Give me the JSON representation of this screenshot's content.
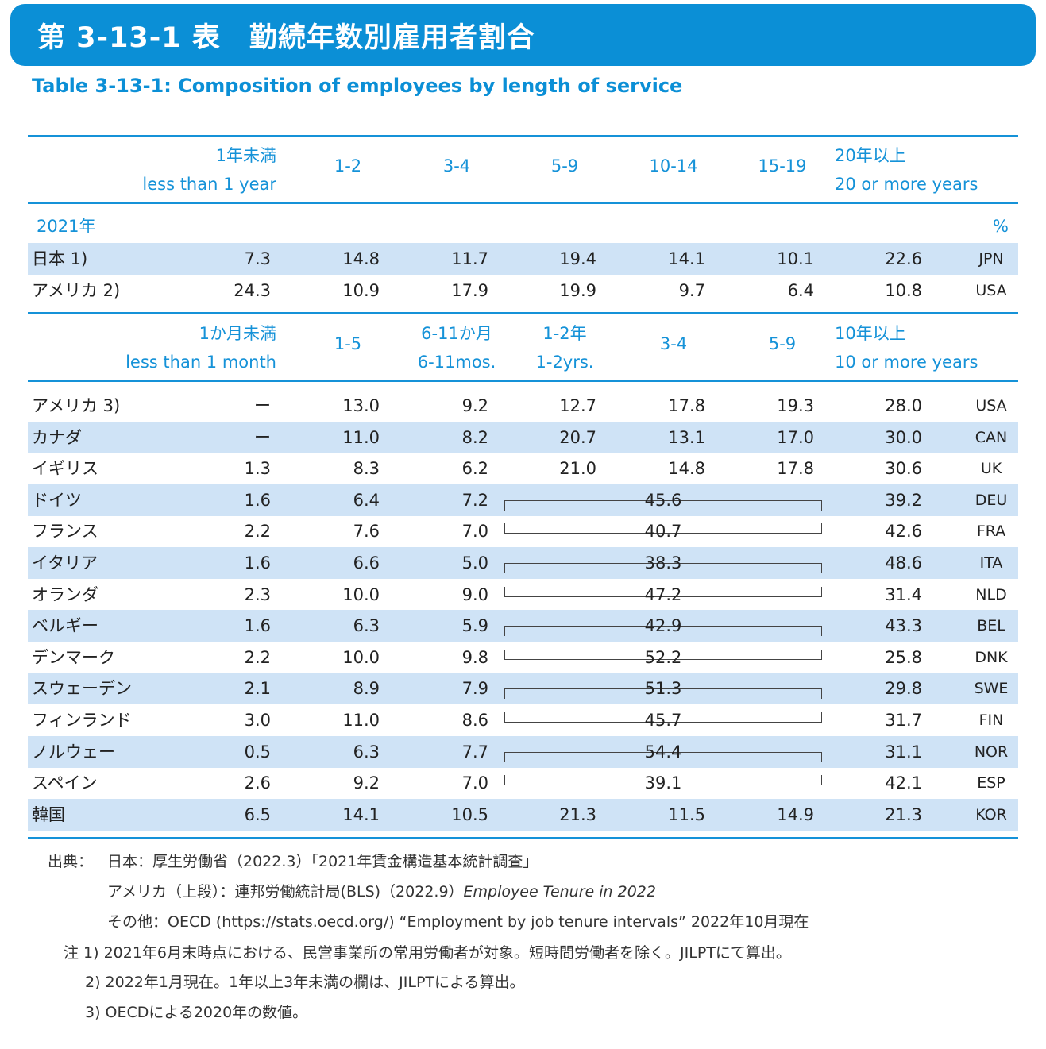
{
  "header": {
    "title": "第 3-13-1 表　勤続年数別雇用者割合",
    "subtitle": "Table 3-13-1: Composition of employees by length of service"
  },
  "section1": {
    "columns": [
      {
        "ja": "1年未満",
        "en": "less than 1 year"
      },
      {
        "ja": "",
        "en": "1-2"
      },
      {
        "ja": "",
        "en": "3-4"
      },
      {
        "ja": "",
        "en": "5-9"
      },
      {
        "ja": "",
        "en": "10-14"
      },
      {
        "ja": "",
        "en": "15-19"
      },
      {
        "ja": "20年以上",
        "en": "20 or more years"
      }
    ],
    "year_label": "2021年",
    "unit": "%",
    "rows": [
      {
        "name": "日本 1)",
        "values": [
          "7.3",
          "14.8",
          "11.7",
          "19.4",
          "14.1",
          "10.1",
          "22.6"
        ],
        "code": "JPN"
      },
      {
        "name": "アメリカ 2)",
        "values": [
          "24.3",
          "10.9",
          "17.9",
          "19.9",
          "9.7",
          "6.4",
          "10.8"
        ],
        "code": "USA"
      }
    ]
  },
  "section2": {
    "columns": [
      {
        "ja": "1か月未満",
        "en": "less than 1 month"
      },
      {
        "ja": "",
        "en": "1-5"
      },
      {
        "ja": "6-11か月",
        "en": "6-11mos."
      },
      {
        "ja": "1-2年",
        "en": "1-2yrs."
      },
      {
        "ja": "",
        "en": "3-4"
      },
      {
        "ja": "",
        "en": "5-9"
      },
      {
        "ja": "10年以上",
        "en": "10 or more years"
      }
    ],
    "rows": [
      {
        "name": "アメリカ 3)",
        "values": [
          "ー",
          "13.0",
          "9.2",
          "12.7",
          "17.8",
          "19.3",
          "28.0"
        ],
        "code": "USA"
      },
      {
        "name": "カナダ",
        "values": [
          "ー",
          "11.0",
          "8.2",
          "20.7",
          "13.1",
          "17.0",
          "30.0"
        ],
        "code": "CAN"
      },
      {
        "name": "イギリス",
        "values": [
          "1.3",
          "8.3",
          "6.2",
          "21.0",
          "14.8",
          "17.8",
          "30.6"
        ],
        "code": "UK"
      },
      {
        "name": "ドイツ",
        "values": [
          "1.6",
          "6.4",
          "7.2"
        ],
        "merged": "45.6",
        "last": "39.2",
        "code": "DEU"
      },
      {
        "name": "フランス",
        "values": [
          "2.2",
          "7.6",
          "7.0"
        ],
        "merged": "40.7",
        "last": "42.6",
        "code": "FRA"
      },
      {
        "name": "イタリア",
        "values": [
          "1.6",
          "6.6",
          "5.0"
        ],
        "merged": "38.3",
        "last": "48.6",
        "code": "ITA"
      },
      {
        "name": "オランダ",
        "values": [
          "2.3",
          "10.0",
          "9.0"
        ],
        "merged": "47.2",
        "last": "31.4",
        "code": "NLD"
      },
      {
        "name": "ベルギー",
        "values": [
          "1.6",
          "6.3",
          "5.9"
        ],
        "merged": "42.9",
        "last": "43.3",
        "code": "BEL"
      },
      {
        "name": "デンマーク",
        "values": [
          "2.2",
          "10.0",
          "9.8"
        ],
        "merged": "52.2",
        "last": "25.8",
        "code": "DNK"
      },
      {
        "name": "スウェーデン",
        "values": [
          "2.1",
          "8.9",
          "7.9"
        ],
        "merged": "51.3",
        "last": "29.8",
        "code": "SWE"
      },
      {
        "name": "フィンランド",
        "values": [
          "3.0",
          "11.0",
          "8.6"
        ],
        "merged": "45.7",
        "last": "31.7",
        "code": "FIN"
      },
      {
        "name": "ノルウェー",
        "values": [
          "0.5",
          "6.3",
          "7.7"
        ],
        "merged": "54.4",
        "last": "31.1",
        "code": "NOR"
      },
      {
        "name": "スペイン",
        "values": [
          "2.6",
          "9.2",
          "7.0"
        ],
        "merged": "39.1",
        "last": "42.1",
        "code": "ESP"
      },
      {
        "name": "韓国",
        "values": [
          "6.5",
          "14.1",
          "10.5",
          "21.3",
          "11.5",
          "14.9",
          "21.3"
        ],
        "code": "KOR"
      }
    ]
  },
  "notes": {
    "source_label": "出典：",
    "source_1": "日本：厚生労働省（2022.3）「2021年賃金構造基本統計調査」",
    "source_2_prefix": "アメリカ（上段）：連邦労働統計局(BLS)（2022.9）",
    "source_2_title": "Employee Tenure in 2022",
    "source_3": "その他：OECD (https://stats.oecd.org/) “Employment by job tenure intervals” 2022年10月現在",
    "note_1": "注 1)  2021年6月末時点における、民営事業所の常用労働者が対象。短時間労働者を除く。JILPTにて算出。",
    "note_2": "2)  2022年1月現在。1年以上3年未満の欄は、JILPTによる算出。",
    "note_3": "3)  OECDによる2020年の数値。"
  }
}
